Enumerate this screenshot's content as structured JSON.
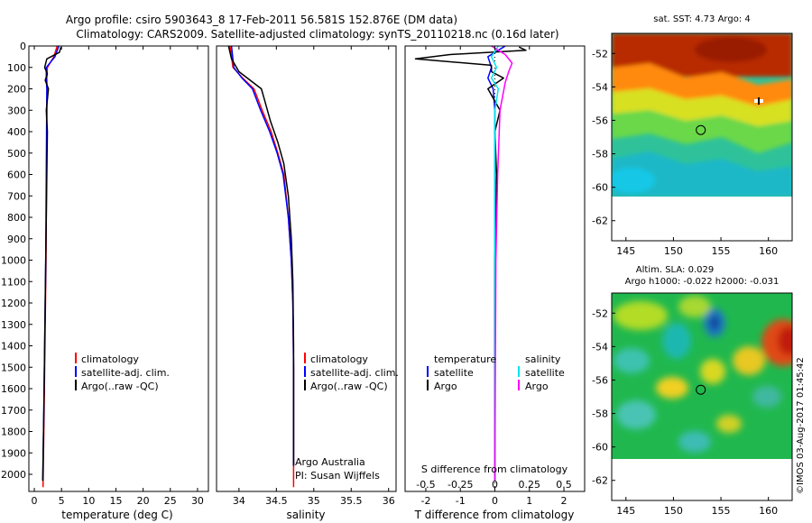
{
  "title_line1": "Argo profile: csiro 5903643_8 17-Feb-2011 56.581S 152.876E (DM data)",
  "title_line2": "Climatology: CARS2009. Satellite-adjusted climatology: synTS_20110218.nc (0.16d later)",
  "watermark": "©IMOS 03-Aug-2017 01:45:42",
  "colors": {
    "climatology": "#ff0000",
    "satellite": "#0000ff",
    "argo": "#000000",
    "sal_satellite": "#00e5ee",
    "sal_argo": "#ff00ff"
  },
  "chart_data": [
    {
      "type": "line",
      "xlabel": "temperature (deg C)",
      "ylabel": "",
      "xlim": [
        -1,
        32
      ],
      "ylim": [
        2080,
        0
      ],
      "xticks": [
        0,
        5,
        10,
        15,
        20,
        25,
        30
      ],
      "yticks": [
        0,
        100,
        200,
        300,
        400,
        500,
        600,
        700,
        800,
        900,
        1000,
        1100,
        1200,
        1300,
        1400,
        1500,
        1600,
        1700,
        1800,
        1900,
        2000
      ],
      "legend": [
        "climatology",
        "satellite-adj. clim.",
        "Argo(..raw -QC)"
      ],
      "series": [
        {
          "key": "climatology",
          "color": "#ff0000",
          "x": [
            4.2,
            3.6,
            2.4,
            2.3,
            2.35,
            2.3,
            2.25,
            2.2,
            2.15,
            2.05,
            1.95,
            1.8,
            1.6
          ],
          "y": [
            0,
            50,
            100,
            150,
            200,
            400,
            600,
            800,
            1000,
            1200,
            1400,
            1700,
            2060
          ]
        },
        {
          "key": "satellite",
          "color": "#0000ff",
          "x": [
            4.5,
            3.8,
            2.2,
            2.2,
            2.3,
            2.25,
            2.2,
            2.15,
            2.1,
            2.0,
            1.9,
            1.75,
            1.55
          ],
          "y": [
            0,
            50,
            100,
            150,
            200,
            400,
            600,
            800,
            1000,
            1200,
            1400,
            1700,
            2030
          ]
        },
        {
          "key": "argo",
          "color": "#000000",
          "x": [
            4.9,
            4.6,
            2.3,
            1.9,
            2.4,
            2.0,
            2.6,
            2.2,
            2.4,
            2.3,
            2.2,
            2.1,
            2.0,
            1.9,
            1.75,
            1.55
          ],
          "y": [
            5,
            30,
            60,
            100,
            130,
            160,
            200,
            300,
            400,
            600,
            800,
            1000,
            1200,
            1400,
            1700,
            2030
          ]
        }
      ]
    },
    {
      "type": "line",
      "xlabel": "salinity",
      "ylabel": "",
      "xlim": [
        33.7,
        36.1
      ],
      "ylim": [
        2080,
        0
      ],
      "xticks": [
        34,
        34.5,
        35,
        35.5,
        36
      ],
      "legend": [
        "climatology",
        "satellite-adj. clim.",
        "Argo(..raw -QC)"
      ],
      "annotations": [
        "Argo Australia",
        "PI: Susan Wijffels"
      ],
      "series": [
        {
          "key": "climatology",
          "color": "#ff0000",
          "x": [
            33.88,
            33.92,
            34.05,
            34.2,
            34.31,
            34.43,
            34.52,
            34.6,
            34.66,
            34.7,
            34.72,
            34.73,
            34.73
          ],
          "y": [
            0,
            100,
            150,
            200,
            300,
            400,
            500,
            600,
            800,
            1000,
            1200,
            1500,
            2060
          ]
        },
        {
          "key": "satellite",
          "color": "#0000ff",
          "x": [
            33.9,
            33.93,
            34.04,
            34.18,
            34.29,
            34.41,
            34.51,
            34.59,
            34.66,
            34.7,
            34.72,
            34.73,
            34.73
          ],
          "y": [
            0,
            100,
            150,
            200,
            300,
            400,
            500,
            600,
            800,
            1000,
            1200,
            1500,
            1960
          ]
        },
        {
          "key": "argo",
          "color": "#000000",
          "x": [
            33.86,
            33.9,
            34.0,
            34.15,
            34.3,
            34.34,
            34.42,
            34.52,
            34.6,
            34.66,
            34.7,
            34.72,
            34.73,
            34.73
          ],
          "y": [
            0,
            60,
            120,
            160,
            200,
            250,
            350,
            450,
            550,
            700,
            900,
            1100,
            1400,
            1960
          ]
        }
      ]
    },
    {
      "type": "line",
      "xlabel": "T difference from climatology",
      "xlabel_top": "S difference from climatology",
      "xlim": [
        -2.6,
        2.6
      ],
      "ylim": [
        2080,
        0
      ],
      "xticks": [
        -2,
        -1,
        0,
        1,
        2
      ],
      "xticks_s": [
        -0.5,
        -0.25,
        0,
        0.25,
        0.5
      ],
      "legend_temperature": "temperature",
      "legend_salinity": "salinity",
      "legend_entries": [
        "satellite",
        "Argo",
        "satellite",
        "Argo"
      ],
      "series": [
        {
          "key": "temp_satellite",
          "color": "#0000ff",
          "x": [
            0.3,
            -0.2,
            -0.1,
            -0.2,
            -0.05,
            0.0,
            0.0,
            0.0,
            0.0
          ],
          "y": [
            0,
            50,
            100,
            150,
            200,
            300,
            500,
            1000,
            2030
          ]
        },
        {
          "key": "temp_argo",
          "color": "#000000",
          "x": [
            0.7,
            0.9,
            -1.3,
            -2.3,
            -0.1,
            -0.1,
            0.25,
            -0.2,
            0.15,
            0.0,
            0.05,
            0.0,
            0.0,
            0.0
          ],
          "y": [
            5,
            20,
            40,
            60,
            90,
            120,
            150,
            200,
            300,
            400,
            600,
            1000,
            1500,
            2030
          ]
        },
        {
          "key": "sal_satellite",
          "color": "#00e5ee",
          "x": [
            0.1,
            -0.1,
            0.05,
            -0.1,
            0.1,
            0.0,
            0.0,
            0.0,
            0.0
          ],
          "y": [
            0,
            50,
            100,
            150,
            200,
            300,
            500,
            1000,
            2030
          ]
        },
        {
          "key": "sal_argo",
          "color": "#ff00ff",
          "x": [
            -0.1,
            0.3,
            0.5,
            0.4,
            0.3,
            0.15,
            0.08,
            0.03,
            0.0
          ],
          "y": [
            0,
            40,
            80,
            120,
            170,
            300,
            600,
            1000,
            2030
          ]
        }
      ]
    },
    {
      "type": "heatmap",
      "title": "sat. SST: 4.73  Argo: 4",
      "xlim": [
        143.5,
        162.5
      ],
      "ylim": [
        -63.2,
        -50.8
      ],
      "xticks": [
        145,
        150,
        155,
        160
      ],
      "yticks": [
        -52,
        -54,
        -56,
        -58,
        -60,
        -62
      ],
      "marker": [
        152.876,
        -56.581
      ]
    },
    {
      "type": "heatmap",
      "title": "Altim. SLA: 0.029",
      "subtitle": "Argo h1000: -0.022 h2000: -0.031",
      "xlim": [
        143.5,
        162.5
      ],
      "ylim": [
        -63.2,
        -50.8
      ],
      "xticks": [
        145,
        150,
        155,
        160
      ],
      "yticks": [
        -52,
        -54,
        -56,
        -58,
        -60,
        -62
      ],
      "marker": [
        152.876,
        -56.581
      ]
    }
  ]
}
